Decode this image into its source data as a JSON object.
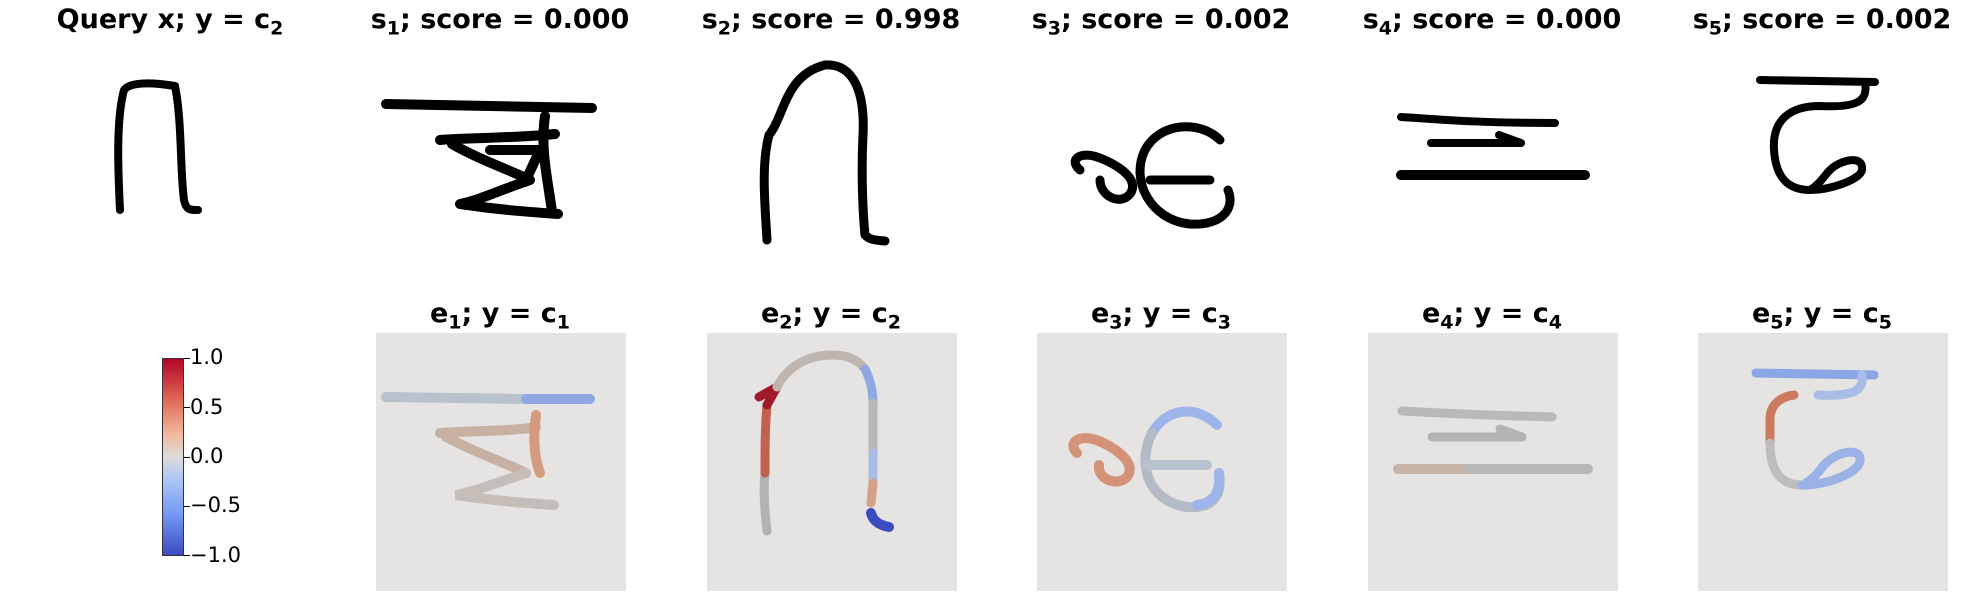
{
  "top_row": [
    {
      "prefix": "Query x; y = c",
      "sub": "2",
      "rest": ""
    },
    {
      "prefix": "s",
      "sub": "1",
      "rest": "; score = 0.000"
    },
    {
      "prefix": "s",
      "sub": "2",
      "rest": "; score = 0.998"
    },
    {
      "prefix": "s",
      "sub": "3",
      "rest": "; score = 0.002"
    },
    {
      "prefix": "s",
      "sub": "4",
      "rest": "; score = 0.000"
    },
    {
      "prefix": "s",
      "sub": "5",
      "rest": "; score = 0.002"
    }
  ],
  "bottom_row": [
    {
      "e": "e",
      "e_sub": "1",
      "mid": "; y = c",
      "c_sub": "1"
    },
    {
      "e": "e",
      "e_sub": "2",
      "mid": "; y = c",
      "c_sub": "2"
    },
    {
      "e": "e",
      "e_sub": "3",
      "mid": "; y = c",
      "c_sub": "3"
    },
    {
      "e": "e",
      "e_sub": "4",
      "mid": "; y = c",
      "c_sub": "4"
    },
    {
      "e": "e",
      "e_sub": "5",
      "mid": "; y = c",
      "c_sub": "5"
    }
  ],
  "colorbar": {
    "ticks": [
      "1.0",
      "0.5",
      "0.0",
      "−0.5",
      "−1.0"
    ],
    "range": [
      -1.0,
      1.0
    ],
    "colormap": "coolwarm",
    "low_color": "#3b4cc0",
    "mid_color": "#dddcdc",
    "high_color": "#b40426"
  }
}
